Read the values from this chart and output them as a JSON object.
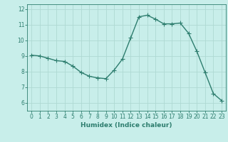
{
  "x": [
    0,
    1,
    2,
    3,
    4,
    5,
    6,
    7,
    8,
    9,
    10,
    11,
    12,
    13,
    14,
    15,
    16,
    17,
    18,
    19,
    20,
    21,
    22,
    23
  ],
  "y": [
    9.05,
    9.0,
    8.85,
    8.7,
    8.65,
    8.35,
    7.95,
    7.7,
    7.6,
    7.55,
    8.1,
    8.8,
    10.15,
    11.5,
    11.6,
    11.35,
    11.05,
    11.05,
    11.1,
    10.45,
    9.3,
    7.95,
    6.6,
    6.15
  ],
  "line_color": "#2d7d6e",
  "marker": "+",
  "marker_size": 4,
  "bg_color": "#c8eeea",
  "grid_color": "#aed9d3",
  "axis_color": "#2d7d6e",
  "xlabel": "Humidex (Indice chaleur)",
  "ylim": [
    5.5,
    12.3
  ],
  "xlim": [
    -0.5,
    23.5
  ],
  "yticks": [
    6,
    7,
    8,
    9,
    10,
    11,
    12
  ],
  "xtick_labels": [
    "0",
    "1",
    "2",
    "3",
    "4",
    "5",
    "6",
    "7",
    "8",
    "9",
    "10",
    "11",
    "12",
    "13",
    "14",
    "15",
    "16",
    "17",
    "18",
    "19",
    "20",
    "21",
    "22",
    "23"
  ],
  "label_fontsize": 6.5,
  "tick_fontsize": 5.5,
  "line_width": 1.0,
  "marker_edge_width": 0.8
}
